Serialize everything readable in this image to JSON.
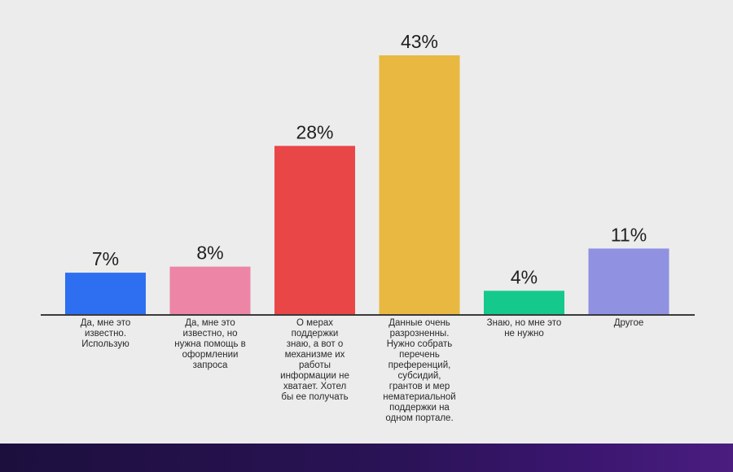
{
  "chart_data": {
    "type": "bar",
    "title": "",
    "xlabel": "",
    "ylabel": "",
    "ylim": [
      0,
      43
    ],
    "grid": false,
    "categories": [
      [
        "Да, мне это",
        "известно.",
        "Использую"
      ],
      [
        "Да, мне это",
        "известно, но",
        "нужна помощь в",
        "оформлении",
        "запроса"
      ],
      [
        "О мерах",
        "поддержки",
        "знаю, а вот о",
        "механизме их",
        "работы",
        "информации не",
        "хватает. Хотел",
        "бы ее получать"
      ],
      [
        "Данные очень",
        "разрозненны.",
        "Нужно собрать",
        "перечень",
        "преференций,",
        "субсидий,",
        "грантов и мер",
        "нематериальной",
        "поддержки на",
        "одном портале."
      ],
      [
        "Знаю, но мне это",
        "не нужно"
      ],
      [
        "Другое"
      ]
    ],
    "values": [
      7,
      8,
      28,
      43,
      4,
      11
    ],
    "value_labels": [
      "7%",
      "8%",
      "28%",
      "43%",
      "4%",
      "11%"
    ],
    "colors": [
      "#2d6ff0",
      "#ec85a6",
      "#e94648",
      "#e8b840",
      "#14c98b",
      "#9191e2"
    ]
  }
}
